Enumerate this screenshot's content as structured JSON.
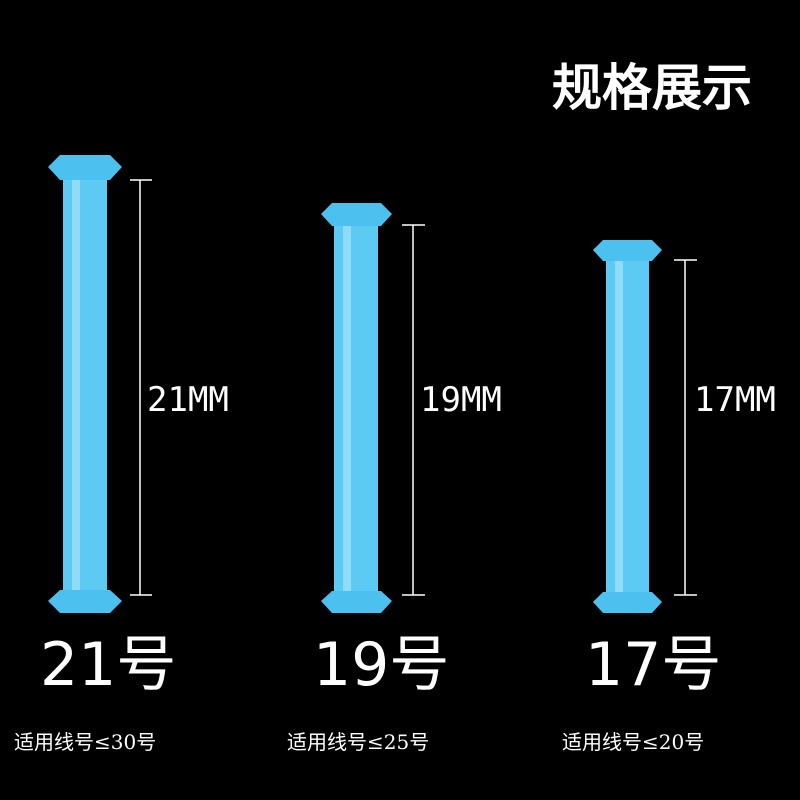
{
  "title": "规格展示",
  "items": [
    {
      "length": "21MM",
      "size": "21号",
      "usage": "适用线号≤30号"
    },
    {
      "length": "19MM",
      "size": "19号",
      "usage": "适用线号≤25号"
    },
    {
      "length": "17MM",
      "size": "17号",
      "usage": "适用线号≤20号"
    }
  ]
}
